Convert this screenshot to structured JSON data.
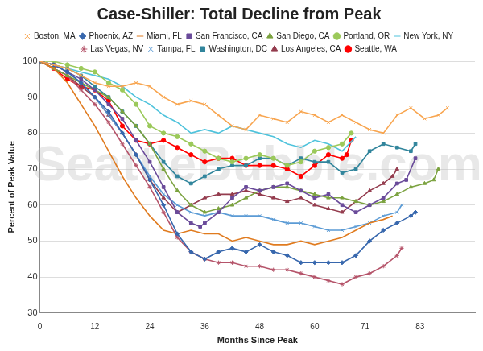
{
  "chart_data": {
    "type": "line",
    "title": "Case-Shiller: Total Decline from Peak",
    "x_label": "Months Since Peak",
    "y_label": "Percent of Peak Value",
    "annotation": "SeattleBubble.com",
    "xlim": [
      0,
      95
    ],
    "xticks": [
      0,
      12,
      24,
      36,
      48,
      60,
      71,
      83
    ],
    "ylim": [
      30,
      100
    ],
    "yticks": [
      30,
      40,
      50,
      60,
      70,
      80,
      90,
      100
    ],
    "grid": "y",
    "legend": "top",
    "series": [
      {
        "name": "Boston, MA",
        "color": "#f8a54f",
        "marker": "x",
        "x": [
          0,
          3,
          6,
          9,
          12,
          15,
          18,
          21,
          24,
          27,
          30,
          33,
          36,
          39,
          42,
          45,
          48,
          51,
          54,
          57,
          60,
          63,
          66,
          69,
          72,
          75,
          78,
          81,
          84,
          87,
          89
        ],
        "values": [
          100,
          99,
          98,
          96,
          94,
          93,
          93,
          94,
          93,
          90,
          88,
          89,
          88,
          85,
          82,
          81,
          85,
          84,
          83,
          86,
          85,
          83,
          85,
          83,
          81,
          80,
          85,
          87,
          84,
          85,
          87
        ]
      },
      {
        "name": "Phoenix, AZ",
        "color": "#3767ad",
        "marker": "diamond",
        "x": [
          0,
          3,
          6,
          9,
          12,
          15,
          18,
          21,
          24,
          27,
          30,
          33,
          36,
          39,
          42,
          45,
          48,
          51,
          54,
          57,
          60,
          63,
          66,
          69,
          72,
          75,
          78,
          81,
          82
        ],
        "values": [
          100,
          99,
          97,
          94,
          90,
          86,
          80,
          74,
          67,
          60,
          52,
          47,
          45,
          47,
          48,
          47,
          49,
          47,
          46,
          44,
          44,
          44,
          44,
          46,
          50,
          53,
          55,
          57,
          58
        ]
      },
      {
        "name": "Miami, FL",
        "color": "#e07b1f",
        "marker": "none",
        "x": [
          0,
          3,
          6,
          9,
          12,
          15,
          18,
          21,
          24,
          27,
          30,
          33,
          36,
          39,
          42,
          45,
          48,
          51,
          54,
          57,
          60,
          63,
          66,
          69,
          72,
          75,
          77
        ],
        "values": [
          100,
          98,
          94,
          88,
          82,
          75,
          68,
          62,
          57,
          53,
          52,
          53,
          52,
          52,
          50,
          51,
          50,
          49,
          49,
          50,
          49,
          50,
          51,
          53,
          55,
          56,
          57
        ]
      },
      {
        "name": "San Francisco, CA",
        "color": "#6a4b9a",
        "marker": "square",
        "x": [
          0,
          3,
          6,
          9,
          12,
          15,
          18,
          21,
          24,
          27,
          30,
          33,
          35,
          36,
          39,
          42,
          45,
          48,
          51,
          54,
          57,
          60,
          63,
          66,
          69,
          72,
          75,
          78,
          80,
          82
        ],
        "values": [
          100,
          99,
          97,
          95,
          92,
          88,
          84,
          78,
          72,
          65,
          58,
          55,
          54,
          55,
          58,
          62,
          65,
          64,
          65,
          66,
          64,
          62,
          63,
          60,
          58,
          60,
          62,
          66,
          67,
          73
        ]
      },
      {
        "name": "San Diego, CA",
        "color": "#7ba23f",
        "marker": "triangle",
        "x": [
          0,
          3,
          6,
          9,
          12,
          15,
          18,
          21,
          24,
          27,
          30,
          33,
          36,
          39,
          42,
          45,
          48,
          51,
          54,
          57,
          60,
          63,
          66,
          69,
          72,
          75,
          78,
          81,
          84,
          86,
          87
        ],
        "values": [
          100,
          98,
          96,
          94,
          92,
          90,
          86,
          82,
          77,
          70,
          64,
          60,
          58,
          59,
          60,
          62,
          64,
          65,
          65,
          64,
          63,
          62,
          62,
          61,
          60,
          61,
          63,
          65,
          66,
          67,
          70
        ]
      },
      {
        "name": "Portland, OR",
        "color": "#9bc95a",
        "marker": "circle",
        "x": [
          0,
          3,
          6,
          9,
          12,
          15,
          18,
          21,
          24,
          27,
          30,
          33,
          36,
          39,
          42,
          45,
          48,
          51,
          54,
          57,
          60,
          63,
          66,
          68
        ],
        "values": [
          100,
          100,
          99,
          98,
          97,
          94,
          92,
          88,
          82,
          80,
          79,
          77,
          75,
          73,
          72,
          73,
          74,
          73,
          71,
          72,
          75,
          76,
          77,
          80
        ]
      },
      {
        "name": "New York, NY",
        "color": "#4fc3dc",
        "marker": "none",
        "x": [
          0,
          3,
          6,
          9,
          12,
          15,
          18,
          21,
          24,
          27,
          30,
          33,
          36,
          39,
          42,
          45,
          48,
          51,
          54,
          57,
          60,
          63,
          66,
          69
        ],
        "values": [
          100,
          99,
          98,
          97,
          96,
          95,
          93,
          90,
          88,
          85,
          83,
          80,
          81,
          80,
          82,
          81,
          80,
          79,
          77,
          76,
          78,
          77,
          75,
          79
        ]
      },
      {
        "name": "Las Vegas, NV",
        "color": "#b5546a",
        "marker": "star",
        "x": [
          0,
          3,
          6,
          9,
          12,
          15,
          18,
          21,
          24,
          27,
          30,
          33,
          36,
          39,
          42,
          45,
          48,
          51,
          54,
          57,
          60,
          63,
          66,
          69,
          72,
          75,
          78,
          79
        ],
        "values": [
          100,
          98,
          96,
          92,
          88,
          83,
          77,
          71,
          65,
          58,
          51,
          47,
          45,
          44,
          44,
          43,
          43,
          42,
          42,
          41,
          40,
          39,
          38,
          40,
          41,
          43,
          46,
          48
        ]
      },
      {
        "name": "Tampa, FL",
        "color": "#5b9bd5",
        "marker": "x",
        "x": [
          0,
          3,
          6,
          9,
          12,
          15,
          18,
          21,
          24,
          27,
          30,
          33,
          36,
          39,
          42,
          45,
          48,
          51,
          54,
          57,
          60,
          63,
          66,
          69,
          72,
          75,
          78,
          79
        ],
        "values": [
          100,
          99,
          97,
          94,
          90,
          85,
          80,
          74,
          68,
          63,
          60,
          58,
          57,
          58,
          57,
          57,
          57,
          56,
          55,
          55,
          54,
          53,
          53,
          54,
          55,
          57,
          58,
          60
        ]
      },
      {
        "name": "Washington, DC",
        "color": "#31859c",
        "marker": "square",
        "x": [
          0,
          3,
          6,
          9,
          12,
          15,
          18,
          21,
          24,
          27,
          30,
          33,
          36,
          39,
          42,
          45,
          48,
          51,
          54,
          57,
          60,
          63,
          66,
          69,
          72,
          75,
          78,
          81,
          82
        ],
        "values": [
          100,
          99,
          98,
          96,
          93,
          90,
          86,
          82,
          77,
          72,
          68,
          66,
          68,
          70,
          71,
          71,
          73,
          73,
          71,
          73,
          72,
          72,
          69,
          70,
          75,
          77,
          76,
          75,
          77
        ]
      },
      {
        "name": "Los Angeles, CA",
        "color": "#943c4e",
        "marker": "triangle",
        "x": [
          0,
          3,
          6,
          9,
          12,
          15,
          18,
          21,
          24,
          27,
          30,
          33,
          36,
          39,
          42,
          45,
          48,
          51,
          54,
          57,
          60,
          63,
          66,
          69,
          72,
          75,
          77,
          78
        ],
        "values": [
          100,
          98,
          96,
          93,
          90,
          85,
          80,
          74,
          67,
          62,
          58,
          60,
          62,
          63,
          63,
          64,
          63,
          62,
          61,
          62,
          60,
          59,
          58,
          61,
          64,
          66,
          68,
          70
        ]
      },
      {
        "name": "Seattle, WA",
        "color": "#ff0000",
        "marker": "circle",
        "x": [
          0,
          3,
          6,
          9,
          12,
          15,
          18,
          21,
          24,
          27,
          30,
          33,
          36,
          39,
          42,
          45,
          48,
          51,
          54,
          57,
          60,
          63,
          66,
          67,
          68
        ],
        "values": [
          100,
          98,
          95,
          93,
          92,
          89,
          82,
          78,
          77,
          78,
          76,
          74,
          72,
          73,
          73,
          71,
          71,
          71,
          70,
          68,
          71,
          74,
          73,
          74,
          78
        ]
      }
    ]
  }
}
